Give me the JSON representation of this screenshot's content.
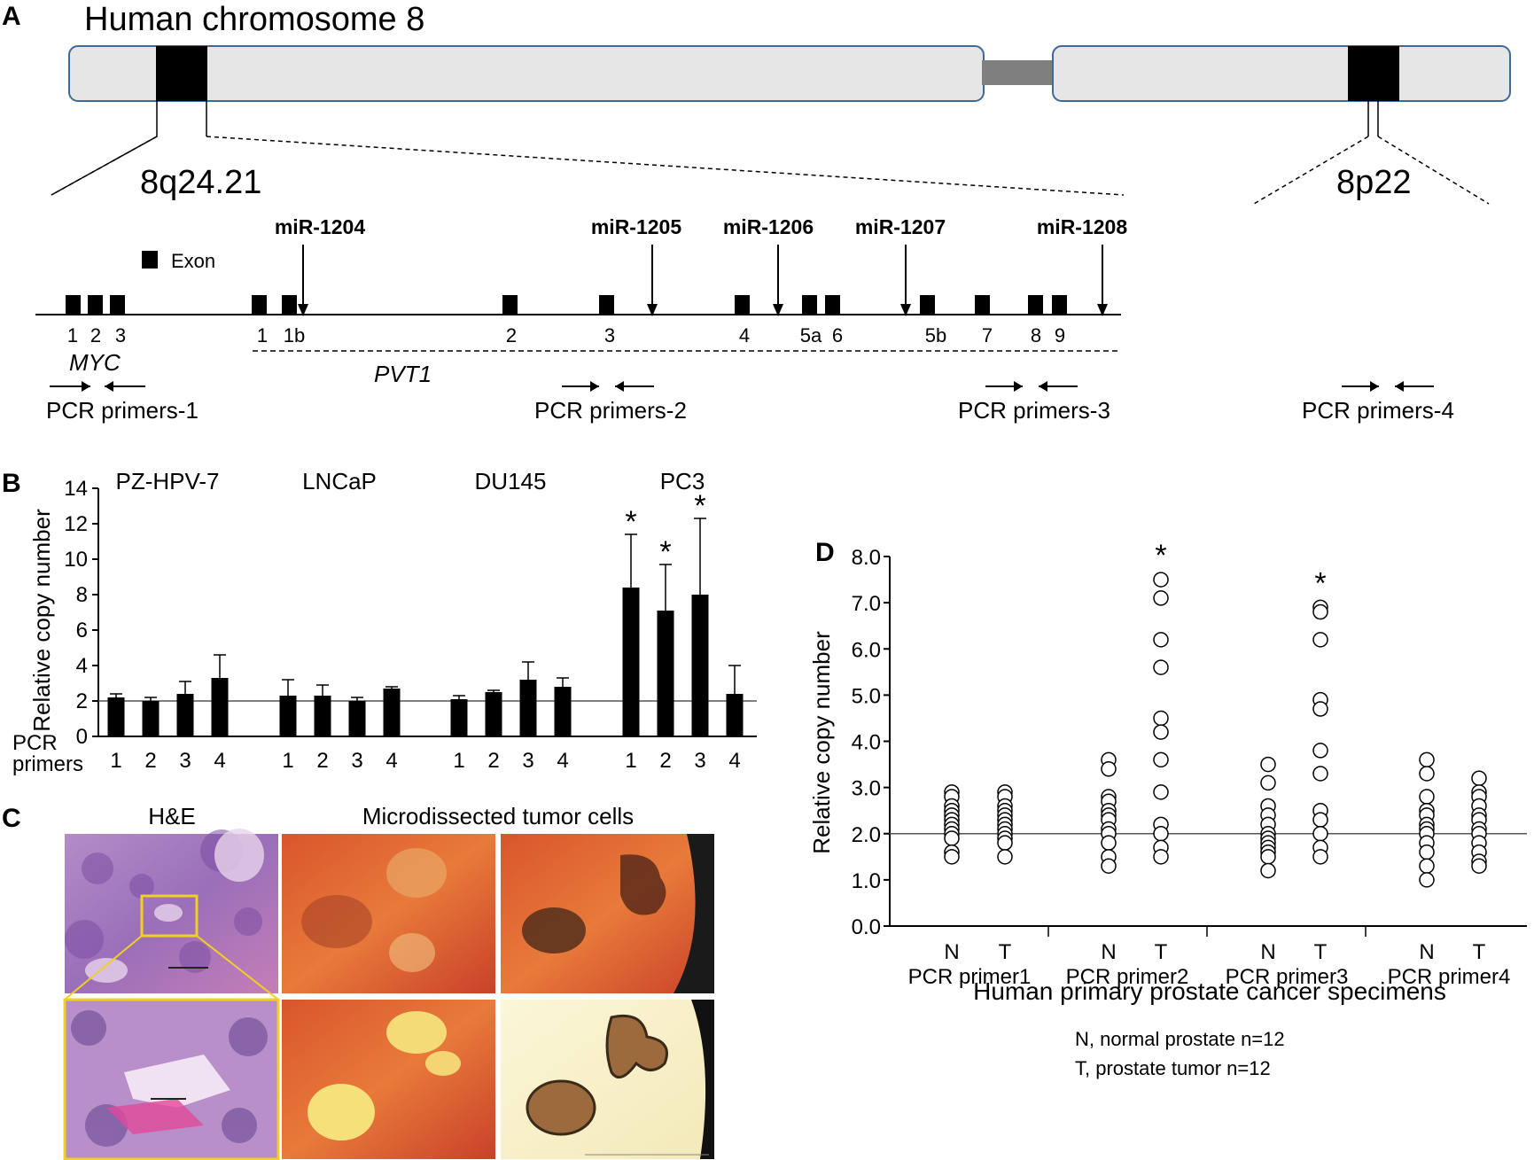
{
  "panel_a": {
    "letter": "A",
    "title": "Human chromosome 8",
    "band_left": "8q24.21",
    "band_right": "8p22",
    "exon_legend": "Exon",
    "mirnas": [
      "miR-1204",
      "miR-1205",
      "miR-1206",
      "miR-1207",
      "miR-1208"
    ],
    "myc_exon_labels": [
      "1",
      "2",
      "3"
    ],
    "pvt1_exon_labels": [
      "1",
      "1b",
      "2",
      "3",
      "4",
      "5a",
      "6",
      "5b",
      "7",
      "8",
      "9"
    ],
    "gene_myc": "MYC",
    "gene_pvt1": "PVT1",
    "primers": [
      "PCR primers-1",
      "PCR primers-2",
      "PCR primers-3",
      "PCR primers-4"
    ]
  },
  "panel_b": {
    "letter": "B",
    "ylabel": "Relative copy number",
    "xlabel": "PCR primers",
    "asterisk": "*",
    "chart_data": {
      "type": "bar",
      "ylim": [
        0,
        14
      ],
      "yticks": [
        0,
        2,
        4,
        6,
        8,
        10,
        12,
        14
      ],
      "reference_line": 2,
      "categories": [
        "1",
        "2",
        "3",
        "4"
      ],
      "series": [
        {
          "name": "PZ-HPV-7",
          "values": [
            2.2,
            2.0,
            2.4,
            3.3
          ],
          "errors": [
            0.2,
            0.2,
            0.7,
            1.3
          ],
          "significant": [
            false,
            false,
            false,
            false
          ]
        },
        {
          "name": "LNCaP",
          "values": [
            2.3,
            2.3,
            2.0,
            2.7
          ],
          "errors": [
            0.9,
            0.6,
            0.2,
            0.1
          ],
          "significant": [
            false,
            false,
            false,
            false
          ]
        },
        {
          "name": "DU145",
          "values": [
            2.1,
            2.5,
            3.2,
            2.8
          ],
          "errors": [
            0.2,
            0.1,
            1.0,
            0.5
          ],
          "significant": [
            false,
            false,
            false,
            false
          ]
        },
        {
          "name": "PC3",
          "values": [
            8.4,
            7.1,
            8.0,
            2.4
          ],
          "errors": [
            3.0,
            2.6,
            4.3,
            1.6
          ],
          "significant": [
            true,
            true,
            true,
            false
          ]
        }
      ]
    }
  },
  "panel_c": {
    "letter": "C",
    "label_he": "H&E",
    "label_micro": "Microdissected tumor cells"
  },
  "panel_d": {
    "letter": "D",
    "ylabel": "Relative copy number",
    "xlabel": "Human primary prostate cancer specimens",
    "legend_lines": [
      "N, normal prostate n=12",
      "T, prostate tumor n=12"
    ],
    "asterisk": "*",
    "chart_data": {
      "type": "scatter",
      "ylim": [
        0,
        8
      ],
      "yticks": [
        "0.0",
        "1.0",
        "2.0",
        "3.0",
        "4.0",
        "5.0",
        "6.0",
        "7.0",
        "8.0"
      ],
      "reference_line": 2.0,
      "groups": [
        {
          "name": "PCR primer1",
          "N": [
            2.9,
            2.8,
            2.6,
            2.5,
            2.4,
            2.3,
            2.2,
            2.1,
            2.0,
            1.9,
            1.6,
            1.5
          ],
          "T": [
            2.9,
            2.8,
            2.6,
            2.5,
            2.4,
            2.3,
            2.2,
            2.1,
            2.0,
            1.9,
            1.8,
            1.5
          ],
          "significant": false
        },
        {
          "name": "PCR primer2",
          "N": [
            3.6,
            3.4,
            2.8,
            2.7,
            2.5,
            2.4,
            2.3,
            2.1,
            2.0,
            1.8,
            1.5,
            1.3
          ],
          "T": [
            7.5,
            7.1,
            6.2,
            5.6,
            4.5,
            4.2,
            3.6,
            2.9,
            2.2,
            2.0,
            1.7,
            1.5
          ],
          "significant": true
        },
        {
          "name": "PCR primer3",
          "N": [
            3.5,
            3.1,
            2.6,
            2.4,
            2.2,
            2.0,
            1.9,
            1.8,
            1.7,
            1.6,
            1.5,
            1.2
          ],
          "T": [
            6.9,
            6.8,
            6.2,
            4.9,
            4.7,
            3.8,
            3.3,
            2.5,
            2.3,
            2.0,
            1.7,
            1.5
          ],
          "significant": true
        },
        {
          "name": "PCR primer4",
          "N": [
            3.6,
            3.3,
            2.8,
            2.5,
            2.4,
            2.2,
            2.1,
            2.0,
            1.8,
            1.6,
            1.3,
            1.0
          ],
          "T": [
            3.2,
            2.9,
            2.8,
            2.6,
            2.4,
            2.3,
            2.1,
            2.0,
            1.8,
            1.6,
            1.4,
            1.3
          ],
          "significant": false
        }
      ],
      "subgroup_labels": [
        "N",
        "T"
      ]
    }
  }
}
